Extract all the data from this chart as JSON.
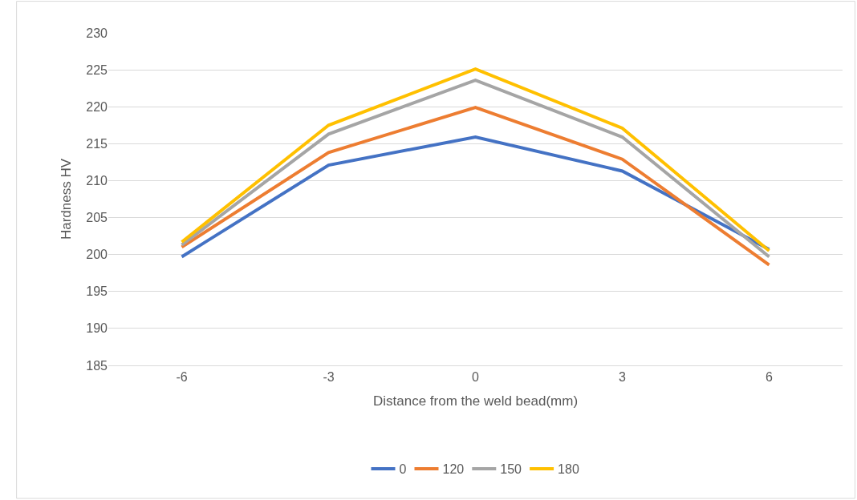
{
  "chart_data": {
    "type": "line",
    "xlabel": "Distance from the weld bead(mm)",
    "ylabel": "Hardness HV",
    "categories": [
      "-6",
      "-3",
      "0",
      "3",
      "6"
    ],
    "series": [
      {
        "name": "0",
        "color": "#4472c4",
        "values": [
          199.7,
          212.1,
          215.9,
          211.3,
          200.7
        ]
      },
      {
        "name": "120",
        "color": "#ed7d31",
        "values": [
          201.0,
          213.8,
          219.9,
          212.9,
          198.6
        ]
      },
      {
        "name": "150",
        "color": "#a5a5a5",
        "values": [
          201.3,
          216.3,
          223.6,
          215.9,
          199.7
        ]
      },
      {
        "name": "180",
        "color": "#ffc000",
        "values": [
          201.7,
          217.5,
          225.1,
          217.1,
          200.5
        ]
      }
    ],
    "ylim": [
      185,
      230
    ],
    "yticks": [
      185,
      190,
      195,
      200,
      205,
      210,
      215,
      220,
      225,
      230
    ],
    "grid": "y",
    "legend": "bottom",
    "marker": "none",
    "line_style": "solid"
  }
}
